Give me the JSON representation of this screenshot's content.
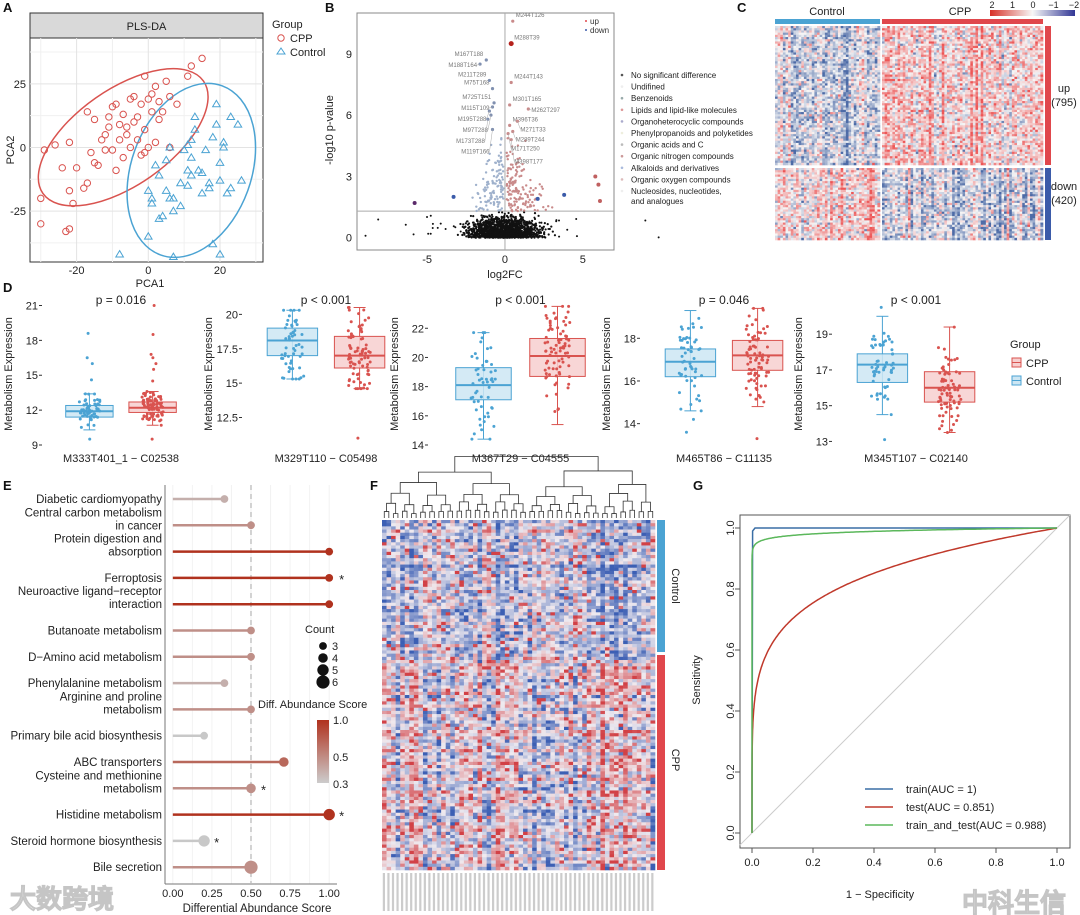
{
  "panel_letters": [
    "A",
    "B",
    "C",
    "D",
    "E",
    "F",
    "G"
  ],
  "watermarks": [
    "大数跨境",
    "中科生信"
  ],
  "colors": {
    "cpp": "#d9534f",
    "control": "#4ba3d3",
    "up": "#e0474c",
    "down": "#3b5ba9",
    "grey": "#bdbdbd"
  },
  "chart_data": [
    {
      "id": "A",
      "type": "scatter",
      "title": "PLS-DA",
      "xlabel": "PCA1",
      "ylabel": "PCA2",
      "xlim": [
        -33,
        32
      ],
      "ylim": [
        -45,
        43
      ],
      "xticks": [
        -20,
        0,
        20
      ],
      "yticks": [
        -25,
        0,
        25
      ],
      "legend": {
        "title": "Group",
        "placement": "top-right",
        "entries": [
          "CPP",
          "Control"
        ]
      },
      "series": [
        {
          "name": "CPP",
          "marker": "circle",
          "points": [
            [
              -30,
              -20
            ],
            [
              -29,
              -1
            ],
            [
              -30,
              -30
            ],
            [
              -26,
              1
            ],
            [
              -24,
              -8
            ],
            [
              -22,
              2
            ],
            [
              -22,
              -17
            ],
            [
              -21,
              -22
            ],
            [
              -22,
              -32
            ],
            [
              -23,
              -33
            ],
            [
              -20,
              -8
            ],
            [
              -18,
              -16
            ],
            [
              -17,
              -14
            ],
            [
              -17,
              14
            ],
            [
              -16,
              -2
            ],
            [
              -15,
              11
            ],
            [
              -15,
              -6
            ],
            [
              -14,
              -7
            ],
            [
              -13,
              3
            ],
            [
              -12,
              -1
            ],
            [
              -12,
              5
            ],
            [
              -11,
              12
            ],
            [
              -11,
              8
            ],
            [
              -10,
              16
            ],
            [
              -10,
              -1
            ],
            [
              -9,
              17
            ],
            [
              -9,
              -9
            ],
            [
              -8,
              3
            ],
            [
              -8,
              9
            ],
            [
              -7,
              -4
            ],
            [
              -7,
              13
            ],
            [
              -6,
              8
            ],
            [
              -5,
              19
            ],
            [
              -5,
              0
            ],
            [
              -4,
              20
            ],
            [
              -4,
              10
            ],
            [
              -3,
              12
            ],
            [
              -2,
              -3
            ],
            [
              -2,
              17
            ],
            [
              -1,
              7
            ],
            [
              -1,
              28
            ],
            [
              0,
              19
            ],
            [
              0,
              0
            ],
            [
              1,
              14
            ],
            [
              1,
              21
            ],
            [
              2,
              2
            ],
            [
              2,
              24
            ],
            [
              3,
              18
            ],
            [
              4,
              14
            ],
            [
              5,
              26
            ],
            [
              6,
              20
            ],
            [
              6,
              0
            ],
            [
              8,
              17
            ],
            [
              11,
              28
            ],
            [
              12,
              32
            ],
            [
              15,
              35
            ],
            [
              3,
              11
            ],
            [
              -3,
              3
            ],
            [
              -6,
              5
            ],
            [
              -1,
              -2
            ]
          ]
        },
        {
          "name": "Control",
          "marker": "triangle",
          "points": [
            [
              -8,
              -42
            ],
            [
              0,
              -17
            ],
            [
              0,
              -35
            ],
            [
              1,
              -22
            ],
            [
              1,
              -20
            ],
            [
              2,
              -7
            ],
            [
              3,
              -28
            ],
            [
              4,
              -27
            ],
            [
              5,
              -5
            ],
            [
              5,
              -17
            ],
            [
              6,
              -20
            ],
            [
              6,
              0
            ],
            [
              7,
              -20
            ],
            [
              7,
              -25
            ],
            [
              9,
              -23
            ],
            [
              10,
              -1
            ],
            [
              11,
              -9
            ],
            [
              11,
              1
            ],
            [
              12,
              -4
            ],
            [
              12,
              -11
            ],
            [
              12,
              3
            ],
            [
              13,
              12
            ],
            [
              13,
              7
            ],
            [
              14,
              -9
            ],
            [
              15,
              -18
            ],
            [
              16,
              -1
            ],
            [
              17,
              -14
            ],
            [
              17,
              -16
            ],
            [
              18,
              4
            ],
            [
              18,
              -38
            ],
            [
              19,
              17
            ],
            [
              19,
              9
            ],
            [
              20,
              -6
            ],
            [
              20,
              -13
            ],
            [
              20,
              -42
            ],
            [
              21,
              0
            ],
            [
              21,
              2
            ],
            [
              22,
              -18
            ],
            [
              23,
              -16
            ],
            [
              23,
              12
            ],
            [
              25,
              9
            ],
            [
              26,
              -13
            ],
            [
              7,
              -43
            ],
            [
              3,
              -11
            ],
            [
              9,
              -14
            ],
            [
              15,
              -10
            ],
            [
              11,
              -15
            ]
          ]
        }
      ]
    },
    {
      "id": "B",
      "type": "scatter",
      "xlabel": "log2FC",
      "ylabel": "-log10 p-value",
      "xlim": [
        -9.5,
        7
      ],
      "ylim": [
        -0.6,
        11
      ],
      "xticks": [
        -5,
        0,
        5
      ],
      "yticks": [
        0,
        3,
        6,
        9
      ],
      "threshold_y": 1.3,
      "threshold_x": 0,
      "legend_direction": [
        "up",
        "down"
      ],
      "legend_categories": [
        "No significant difference",
        "Undifined",
        "Benzenoids",
        "Lipids and lipid-like molecules",
        "Organoheterocyclic compounds",
        "Phenylpropanoids and polyketides",
        "Organic acids and C",
        "Organic nitrogen compounds",
        "Alkaloids and derivatives",
        "Organic oxygen compounds",
        "Nucleosides, nucleotides,",
        "and analogues"
      ],
      "labeled_points": [
        {
          "name": "M244T126",
          "x": 0.5,
          "y": 10.6,
          "dir": "up"
        },
        {
          "name": "M288T39",
          "x": 0.4,
          "y": 9.5,
          "dir": "up"
        },
        {
          "name": "M167T188",
          "x": -1.2,
          "y": 8.7,
          "dir": "down"
        },
        {
          "name": "M188T164",
          "x": -1.6,
          "y": 8.5,
          "dir": "down"
        },
        {
          "name": "M211T289",
          "x": -1.0,
          "y": 7.7,
          "dir": "down"
        },
        {
          "name": "M75T168",
          "x": -0.8,
          "y": 7.3,
          "dir": "down"
        },
        {
          "name": "M244T143",
          "x": 0.4,
          "y": 7.6,
          "dir": "up"
        },
        {
          "name": "M725T151",
          "x": -0.7,
          "y": 6.6,
          "dir": "down"
        },
        {
          "name": "M115T109",
          "x": -0.8,
          "y": 6.4,
          "dir": "down"
        },
        {
          "name": "M301T165",
          "x": 0.3,
          "y": 6.5,
          "dir": "up"
        },
        {
          "name": "M195T288",
          "x": -1.0,
          "y": 6.2,
          "dir": "down"
        },
        {
          "name": "M97T288",
          "x": -0.9,
          "y": 6.0,
          "dir": "down"
        },
        {
          "name": "M262T297",
          "x": 1.5,
          "y": 6.3,
          "dir": "up"
        },
        {
          "name": "M173T288",
          "x": -1.1,
          "y": 5.8,
          "dir": "down"
        },
        {
          "name": "M396T36",
          "x": 0.3,
          "y": 5.5,
          "dir": "up"
        },
        {
          "name": "M271T33",
          "x": 0.8,
          "y": 5.7,
          "dir": "up"
        },
        {
          "name": "M119T166",
          "x": -0.8,
          "y": 5.3,
          "dir": "down"
        },
        {
          "name": "M289T244",
          "x": 0.5,
          "y": 5.2,
          "dir": "up"
        },
        {
          "name": "M171T250",
          "x": 0.2,
          "y": 5.1,
          "dir": "up"
        },
        {
          "name": "M398T177",
          "x": 0.4,
          "y": 4.8,
          "dir": "up"
        }
      ]
    },
    {
      "id": "C",
      "type": "heatmap",
      "column_groups": [
        "Control",
        "CPP"
      ],
      "row_groups": [
        {
          "label": "up",
          "count": "(795)"
        },
        {
          "label": "down",
          "count": "(420)"
        }
      ],
      "color_scale": {
        "ticks": [
          "2",
          "1",
          "0",
          "−1",
          "−2"
        ],
        "high": "#d73027",
        "mid": "#f7f7f7",
        "low": "#313695"
      }
    },
    {
      "id": "D",
      "type": "box",
      "ylabel": "Metabolism Expression",
      "legend": {
        "title": "Group",
        "entries": [
          "CPP",
          "Control"
        ],
        "placement": "right"
      },
      "panels": [
        {
          "name": "M333T401_1 − C02538",
          "p": "p = 0.016",
          "ylim": [
            9,
            21.3
          ],
          "yticks": [
            9,
            12,
            15,
            18,
            21
          ],
          "control": {
            "min": 10.3,
            "q1": 11.4,
            "median": 11.9,
            "q3": 12.4,
            "max": 13.4,
            "outliers": [
              9.5,
              14.6,
              16,
              16.5,
              18.6
            ]
          },
          "cpp": {
            "min": 10.7,
            "q1": 11.8,
            "median": 12.2,
            "q3": 12.7,
            "max": 13.6,
            "outliers": [
              9.5,
              14.5,
              15.5,
              16,
              16.5,
              16.8,
              18.5,
              21
            ]
          }
        },
        {
          "name": "M329T110 − C05498",
          "p": "p < 0.001",
          "ylim": [
            10.5,
            20.9
          ],
          "yticks": [
            12.5,
            15.0,
            17.5,
            20.0
          ],
          "control": {
            "min": 15.3,
            "q1": 17.0,
            "median": 18.1,
            "q3": 19.0,
            "max": 20.3,
            "outliers": []
          },
          "cpp": {
            "min": 14.6,
            "q1": 16.1,
            "median": 17.0,
            "q3": 18.4,
            "max": 20.5,
            "outliers": [
              11.0
            ]
          }
        },
        {
          "name": "M367T29 − C04555",
          "p": "p < 0.001",
          "ylim": [
            14,
            23.8
          ],
          "yticks": [
            14,
            16,
            18,
            20,
            22
          ],
          "control": {
            "min": 14.4,
            "q1": 17.1,
            "median": 18.1,
            "q3": 19.3,
            "max": 21.7,
            "outliers": []
          },
          "cpp": {
            "min": 15.4,
            "q1": 18.7,
            "median": 20.1,
            "q3": 21.3,
            "max": 23.5,
            "outliers": []
          }
        },
        {
          "name": "M465T86 − C11135",
          "p": "p = 0.046",
          "ylim": [
            13,
            19.7
          ],
          "yticks": [
            14,
            16,
            18
          ],
          "control": {
            "min": 14.6,
            "q1": 16.2,
            "median": 16.9,
            "q3": 17.5,
            "max": 19.3,
            "outliers": [
              13.6,
              14.2
            ]
          },
          "cpp": {
            "min": 14.8,
            "q1": 16.5,
            "median": 17.2,
            "q3": 17.9,
            "max": 19.4,
            "outliers": [
              13.3
            ]
          }
        },
        {
          "name": "M345T107 − C02140",
          "p": "p < 0.001",
          "ylim": [
            12.8,
            20.8
          ],
          "yticks": [
            13,
            15,
            17,
            19
          ],
          "control": {
            "min": 14.5,
            "q1": 16.3,
            "median": 17.3,
            "q3": 17.9,
            "max": 20.0,
            "outliers": [
              13.1,
              20.5
            ]
          },
          "cpp": {
            "min": 13.5,
            "q1": 15.2,
            "median": 16.0,
            "q3": 16.9,
            "max": 19.4,
            "outliers": []
          }
        }
      ]
    },
    {
      "id": "E",
      "type": "lollipop",
      "xlabel": "Differential Abundance Score",
      "xlim": [
        -0.05,
        1.05
      ],
      "xticks": [
        "0.00",
        "0.25",
        "0.50",
        "0.75",
        "1.00"
      ],
      "reference_x": 0.5,
      "size_legend": {
        "title": "Count",
        "values": [
          3,
          4,
          5,
          6
        ]
      },
      "color_legend": {
        "title": "Diff. Abundance Score",
        "ticks": [
          "1.0",
          "0.5",
          "0.3"
        ]
      },
      "categories": [
        {
          "label": [
            "Diabetic cardiomyopathy"
          ],
          "value": 0.33,
          "count": 3,
          "sig": ""
        },
        {
          "label": [
            "Central carbon metabolism",
            "in cancer"
          ],
          "value": 0.5,
          "count": 3,
          "sig": ""
        },
        {
          "label": [
            "Protein digestion and",
            "absorption"
          ],
          "value": 1.0,
          "count": 3,
          "sig": ""
        },
        {
          "label": [
            "Ferroptosis"
          ],
          "value": 1.0,
          "count": 3,
          "sig": "*"
        },
        {
          "label": [
            "Neuroactive ligand−receptor",
            "interaction"
          ],
          "value": 1.0,
          "count": 3,
          "sig": ""
        },
        {
          "label": [
            "Butanoate metabolism"
          ],
          "value": 0.5,
          "count": 3,
          "sig": ""
        },
        {
          "label": [
            "D−Amino acid metabolism"
          ],
          "value": 0.5,
          "count": 3,
          "sig": ""
        },
        {
          "label": [
            "Phenylalanine metabolism"
          ],
          "value": 0.33,
          "count": 3,
          "sig": ""
        },
        {
          "label": [
            "Arginine and proline",
            "metabolism"
          ],
          "value": 0.5,
          "count": 3,
          "sig": ""
        },
        {
          "label": [
            "Primary bile acid biosynthesis"
          ],
          "value": 0.2,
          "count": 3,
          "sig": ""
        },
        {
          "label": [
            "ABC transporters"
          ],
          "value": 0.71,
          "count": 4,
          "sig": ""
        },
        {
          "label": [
            "Cysteine and methionine",
            "metabolism"
          ],
          "value": 0.5,
          "count": 4,
          "sig": "*"
        },
        {
          "label": [
            "Histidine metabolism"
          ],
          "value": 1.0,
          "count": 5,
          "sig": "*"
        },
        {
          "label": [
            "Steroid hormone biosynthesis"
          ],
          "value": 0.2,
          "count": 5,
          "sig": "*"
        },
        {
          "label": [
            "Bile secretion"
          ],
          "value": 0.5,
          "count": 6,
          "sig": ""
        }
      ]
    },
    {
      "id": "F",
      "type": "heatmap",
      "row_groups": [
        "Control",
        "CPP"
      ]
    },
    {
      "id": "G",
      "type": "line",
      "xlabel": "1 − Specificity",
      "ylabel": "Sensitivity",
      "xlim": [
        0,
        1
      ],
      "ylim": [
        0,
        1
      ],
      "xticks": [
        "0.0",
        "0.2",
        "0.4",
        "0.6",
        "0.8",
        "1.0"
      ],
      "yticks": [
        "0.0",
        "0.2",
        "0.4",
        "0.6",
        "0.8",
        "1.0"
      ],
      "legend_placement": "bottom-right",
      "series": [
        {
          "name": "train(AUC =  1)",
          "auc": 1.0,
          "color": "#3a6ea5"
        },
        {
          "name": "test(AUC =  0.851)",
          "auc": 0.851,
          "color": "#c0392b"
        },
        {
          "name": "train_and_test(AUC =  0.988)",
          "auc": 0.988,
          "color": "#5cb85c"
        }
      ]
    }
  ]
}
